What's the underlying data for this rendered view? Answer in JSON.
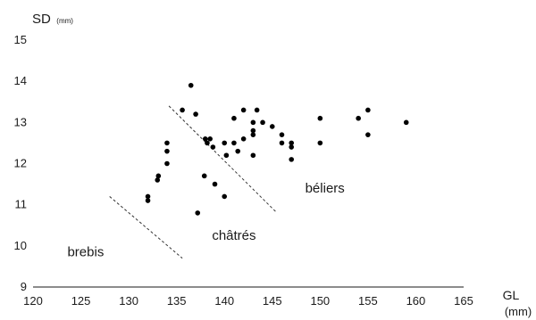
{
  "chart_data": {
    "type": "scatter",
    "title": "",
    "ylabel": "SD",
    "ylabel_unit": "(mm)",
    "xlabel": "GL",
    "xlabel_unit": "(mm)",
    "xlim": [
      120,
      165
    ],
    "ylim": [
      9,
      15
    ],
    "x_ticks": [
      "120",
      "125",
      "130",
      "135",
      "140",
      "145",
      "150",
      "155",
      "160",
      "165"
    ],
    "y_ticks": [
      "9",
      "10",
      "11",
      "12",
      "13",
      "14",
      "15"
    ],
    "grid": false,
    "legend": "none",
    "marker_color": "#000000",
    "points": [
      {
        "x": 132.0,
        "y": 11.2
      },
      {
        "x": 132.0,
        "y": 11.1
      },
      {
        "x": 133.0,
        "y": 11.6
      },
      {
        "x": 133.1,
        "y": 11.7
      },
      {
        "x": 134.0,
        "y": 12.0
      },
      {
        "x": 134.0,
        "y": 12.3
      },
      {
        "x": 134.0,
        "y": 12.5
      },
      {
        "x": 135.6,
        "y": 13.3
      },
      {
        "x": 136.5,
        "y": 13.9
      },
      {
        "x": 137.0,
        "y": 13.2
      },
      {
        "x": 137.2,
        "y": 10.8
      },
      {
        "x": 137.9,
        "y": 11.7
      },
      {
        "x": 138.0,
        "y": 12.6
      },
      {
        "x": 138.2,
        "y": 12.5
      },
      {
        "x": 138.5,
        "y": 12.6
      },
      {
        "x": 138.8,
        "y": 12.4
      },
      {
        "x": 139.0,
        "y": 11.5
      },
      {
        "x": 140.0,
        "y": 12.5
      },
      {
        "x": 140.0,
        "y": 11.2
      },
      {
        "x": 140.2,
        "y": 12.2
      },
      {
        "x": 141.0,
        "y": 12.5
      },
      {
        "x": 141.0,
        "y": 13.1
      },
      {
        "x": 141.4,
        "y": 12.3
      },
      {
        "x": 142.0,
        "y": 13.3
      },
      {
        "x": 142.0,
        "y": 12.6
      },
      {
        "x": 143.0,
        "y": 12.7
      },
      {
        "x": 143.0,
        "y": 12.8
      },
      {
        "x": 143.0,
        "y": 13.0
      },
      {
        "x": 143.0,
        "y": 12.2
      },
      {
        "x": 143.4,
        "y": 13.3
      },
      {
        "x": 144.0,
        "y": 13.0
      },
      {
        "x": 145.0,
        "y": 12.9
      },
      {
        "x": 146.0,
        "y": 12.7
      },
      {
        "x": 146.0,
        "y": 12.5
      },
      {
        "x": 147.0,
        "y": 12.5
      },
      {
        "x": 147.0,
        "y": 12.4
      },
      {
        "x": 147.0,
        "y": 12.1
      },
      {
        "x": 150.0,
        "y": 13.1
      },
      {
        "x": 150.0,
        "y": 12.5
      },
      {
        "x": 154.0,
        "y": 13.1
      },
      {
        "x": 155.0,
        "y": 13.3
      },
      {
        "x": 155.0,
        "y": 12.7
      },
      {
        "x": 159.0,
        "y": 13.0
      }
    ],
    "separators": [
      {
        "x1": 128.0,
        "y1": 11.2,
        "x2": 135.6,
        "y2": 9.7
      },
      {
        "x1": 134.2,
        "y1": 13.4,
        "x2": 145.5,
        "y2": 10.8
      }
    ],
    "annotations": [
      {
        "text": "brebis",
        "x": 125.5,
        "y": 9.75
      },
      {
        "text": "châtrés",
        "x": 141.0,
        "y": 10.15
      },
      {
        "text": "béliers",
        "x": 150.5,
        "y": 11.3
      }
    ]
  }
}
